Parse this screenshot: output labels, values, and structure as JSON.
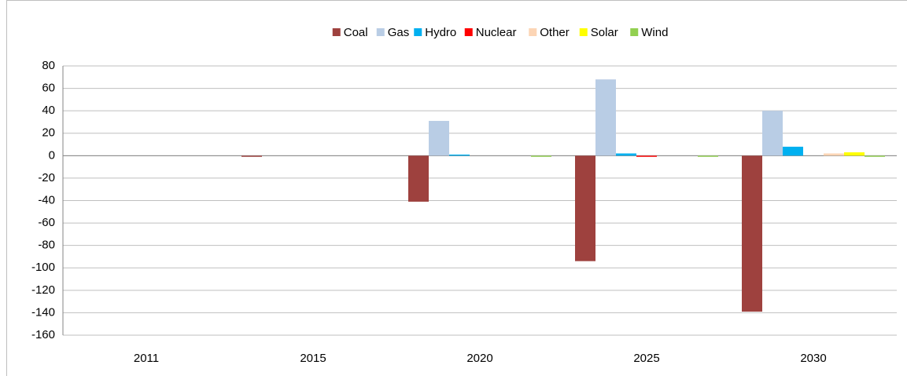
{
  "chart_data": {
    "type": "bar",
    "categories": [
      "2011",
      "2015",
      "2020",
      "2025",
      "2030"
    ],
    "series": [
      {
        "name": "Coal",
        "color": "#9e413e",
        "values": [
          0,
          -1,
          -41,
          -94,
          -139
        ]
      },
      {
        "name": "Gas",
        "color": "#b9cde5",
        "values": [
          0,
          0,
          31,
          68,
          40
        ]
      },
      {
        "name": "Hydro",
        "color": "#00b0f0",
        "values": [
          0,
          0,
          1,
          2,
          8
        ]
      },
      {
        "name": "Nuclear",
        "color": "#ff0000",
        "values": [
          0,
          0,
          0,
          -1,
          0
        ]
      },
      {
        "name": "Other",
        "color": "#fcd5b5",
        "values": [
          0,
          0,
          0,
          0,
          2
        ]
      },
      {
        "name": "Solar",
        "color": "#ffff00",
        "values": [
          0,
          0,
          0,
          0,
          3
        ]
      },
      {
        "name": "Wind",
        "color": "#92d050",
        "values": [
          0,
          0,
          -1,
          -1,
          -1
        ]
      }
    ],
    "ylim": [
      -160,
      80
    ],
    "yticks": [
      -160,
      -140,
      -120,
      -100,
      -80,
      -60,
      -40,
      -20,
      0,
      20,
      40,
      60,
      80
    ],
    "grid": true,
    "legend": "top"
  }
}
